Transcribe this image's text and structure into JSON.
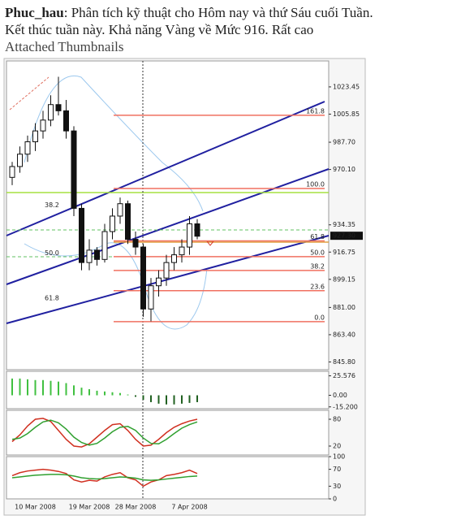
{
  "post": {
    "author": "Phuc_hau",
    "text": ": Phân tích kỹ thuật cho Hôm nay và thứ Sáu cuối Tuần.",
    "line2": "Kết thúc tuần này. Khả năng Vàng về Mức 916. Rất cao",
    "attachments_label": "Attached Thumbnails"
  },
  "chart_data": {
    "type": "candlestick",
    "categories": [
      null,
      null,
      null,
      "10 Mar 2008",
      null,
      null,
      null,
      null,
      null,
      null,
      "19 Mar 2008",
      null,
      null,
      null,
      null,
      null,
      "28 Mar 2008",
      null,
      null,
      null,
      null,
      null,
      null,
      "7 Apr 2008",
      null
    ],
    "open": [
      965,
      972,
      980,
      988,
      995,
      1002,
      1012,
      1008,
      995,
      945,
      910,
      918,
      912,
      930,
      940,
      948,
      925,
      920,
      880,
      895,
      900,
      910,
      915,
      920,
      935
    ],
    "high": [
      975,
      985,
      992,
      1000,
      1008,
      1018,
      1030,
      1015,
      998,
      948,
      925,
      920,
      935,
      945,
      952,
      950,
      930,
      922,
      900,
      905,
      915,
      920,
      925,
      940,
      938
    ],
    "low": [
      960,
      968,
      975,
      982,
      990,
      998,
      1005,
      990,
      940,
      905,
      905,
      908,
      910,
      925,
      935,
      922,
      915,
      875,
      872,
      888,
      895,
      905,
      910,
      915,
      925
    ],
    "close": [
      972,
      980,
      988,
      995,
      1002,
      1012,
      1008,
      995,
      945,
      910,
      918,
      912,
      930,
      940,
      948,
      925,
      920,
      880,
      895,
      900,
      910,
      915,
      920,
      935,
      927
    ],
    "ylim": [
      840.8,
      1040.2
    ],
    "yticks": [
      1023.45,
      1005.85,
      {
        "value": 987.7,
        "label": "987.70"
      },
      {
        "value": 970.1,
        "label": "970.10"
      },
      934.35,
      916.75,
      899.15,
      {
        "value": 881.0,
        "label": "881.00"
      },
      {
        "value": 863.4,
        "label": "863.40"
      },
      {
        "value": 845.8,
        "label": "845.80"
      }
    ],
    "last_price": {
      "value": 927.3,
      "label": "927.30"
    },
    "fib_levels": [
      {
        "label": "161.8",
        "price": 1005.1
      },
      {
        "label": "100.0",
        "price": 957.8
      },
      {
        "label": "61.8",
        "price": 924.0
      },
      {
        "label": "50.0",
        "price": 913.8
      },
      {
        "label": "38.2",
        "price": 904.9
      },
      {
        "label": "23.6",
        "price": 891.8
      },
      {
        "label": "0.0",
        "price": 871.8
      }
    ],
    "channel_labels": [
      {
        "label": "38.2",
        "price": 947.0
      },
      {
        "label": "50.0",
        "price": 916.0
      },
      {
        "label": "61.8",
        "price": 887.0
      }
    ],
    "macd": {
      "ylim": [
        -17.6,
        31.5
      ],
      "yticks": [
        25.576,
        {
          "value": 0,
          "label": "0.00"
        },
        {
          "value": -15.2,
          "label": "-15.200"
        }
      ],
      "values": [
        22,
        22,
        21,
        20,
        20,
        19,
        18,
        16,
        13,
        10,
        8,
        6,
        5,
        4,
        3,
        1,
        -2,
        -6,
        -9,
        -11,
        -12,
        -12,
        -11,
        -10,
        -9
      ]
    },
    "stochastic": {
      "ylim": [
        0,
        100
      ],
      "yticks": [
        80,
        20
      ],
      "series": [
        {
          "color": "#d03020",
          "values": [
            30,
            45,
            65,
            80,
            82,
            75,
            55,
            35,
            20,
            18,
            25,
            40,
            55,
            68,
            70,
            55,
            35,
            20,
            22,
            35,
            50,
            62,
            70,
            76,
            80
          ]
        },
        {
          "color": "#30a030",
          "values": [
            35,
            38,
            48,
            62,
            74,
            78,
            72,
            58,
            40,
            28,
            22,
            26,
            38,
            52,
            62,
            64,
            55,
            38,
            26,
            25,
            35,
            48,
            60,
            68,
            74
          ]
        }
      ]
    },
    "rsi": {
      "ylim": [
        0,
        100
      ],
      "yticks": [
        100,
        70,
        30,
        0
      ],
      "series": [
        {
          "color": "#d03020",
          "values": [
            55,
            62,
            66,
            68,
            70,
            68,
            65,
            60,
            45,
            40,
            44,
            42,
            52,
            58,
            62,
            50,
            45,
            30,
            40,
            45,
            55,
            58,
            62,
            68,
            60
          ]
        },
        {
          "color": "#30a030",
          "values": [
            50,
            52,
            54,
            56,
            57,
            58,
            58,
            57,
            54,
            50,
            48,
            47,
            48,
            50,
            52,
            51,
            49,
            45,
            44,
            45,
            47,
            49,
            51,
            53,
            54
          ]
        }
      ]
    }
  }
}
